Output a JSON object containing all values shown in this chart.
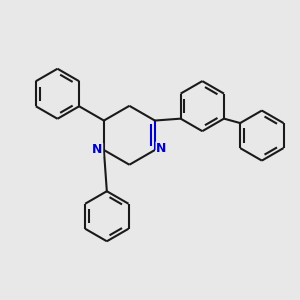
{
  "bg_color": "#e8e8e8",
  "bond_color": "#1a1a1a",
  "nitrogen_color": "#0000cc",
  "bond_width": 1.5,
  "fig_size": [
    3.0,
    3.0
  ],
  "dpi": 100,
  "xlim": [
    0,
    10
  ],
  "ylim": [
    0,
    10
  ]
}
